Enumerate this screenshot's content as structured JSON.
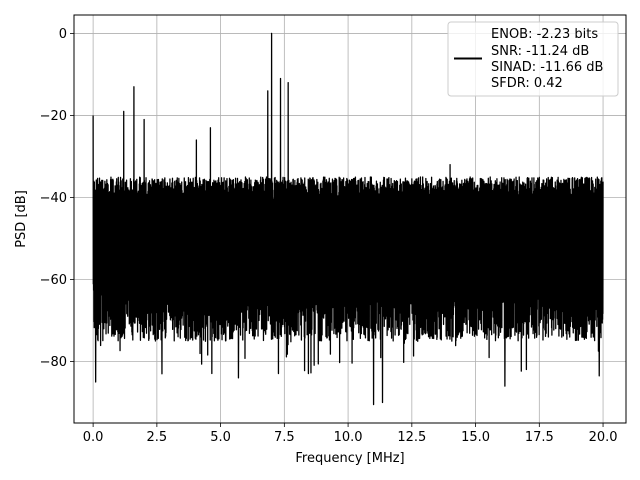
{
  "chart_data": {
    "type": "line",
    "title": "",
    "xlabel": "Frequency [MHz]",
    "ylabel": "PSD [dB]",
    "xlim": [
      -0.75,
      20.9
    ],
    "ylim": [
      -95,
      4.5
    ],
    "x_ticks": [
      0.0,
      2.5,
      5.0,
      7.5,
      10.0,
      12.5,
      15.0,
      17.5,
      20.0
    ],
    "x_tick_labels": [
      "0.0",
      "2.5",
      "5.0",
      "7.5",
      "10.0",
      "12.5",
      "15.0",
      "17.5",
      "20.0"
    ],
    "y_ticks": [
      0,
      -20,
      -40,
      -60,
      -80
    ],
    "y_tick_labels": [
      "0",
      "−20",
      "−40",
      "−60",
      "−80"
    ],
    "grid": true,
    "legend_position": "top-right",
    "legend": {
      "lines": [
        "ENOB: -2.23 bits",
        "SNR: -11.24 dB",
        "SINAD: -11.66 dB",
        "SFDR: 0.42"
      ]
    },
    "series": [
      {
        "color": "#000000",
        "noise_floor": {
          "x_range": [
            0.0,
            20.0
          ],
          "upper_envelope_db": -38,
          "lower_envelope_db": -68,
          "deepest_dip_db": -90.5
        },
        "spikes": [
          {
            "x": 0.0,
            "y": -20
          },
          {
            "x": 1.2,
            "y": -19
          },
          {
            "x": 1.6,
            "y": -13
          },
          {
            "x": 2.0,
            "y": -21
          },
          {
            "x": 4.05,
            "y": -26
          },
          {
            "x": 4.6,
            "y": -23
          },
          {
            "x": 6.85,
            "y": -14
          },
          {
            "x": 7.0,
            "y": 0
          },
          {
            "x": 7.35,
            "y": -11
          },
          {
            "x": 7.65,
            "y": -12
          },
          {
            "x": 14.0,
            "y": -32
          }
        ],
        "dips": [
          {
            "x": 0.1,
            "y": -85
          },
          {
            "x": 2.7,
            "y": -83
          },
          {
            "x": 5.7,
            "y": -84
          },
          {
            "x": 11.0,
            "y": -90.5
          },
          {
            "x": 11.35,
            "y": -90
          },
          {
            "x": 16.15,
            "y": -86
          },
          {
            "x": 19.85,
            "y": -83.5
          }
        ]
      }
    ]
  }
}
